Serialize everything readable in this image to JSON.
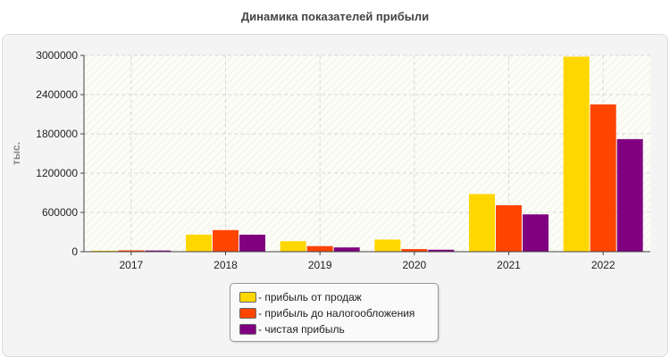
{
  "chart_data": {
    "type": "bar",
    "title": "Динамика показателей прибыли",
    "ylabel": "тыс.",
    "xlabel": "",
    "categories": [
      "2017",
      "2018",
      "2019",
      "2020",
      "2021",
      "2022"
    ],
    "series": [
      {
        "name": "- прибыль от продаж",
        "color": "#FFD700",
        "values": [
          15000,
          260000,
          160000,
          185000,
          880000,
          2980000
        ]
      },
      {
        "name": "- прибыль до налогообложения",
        "color": "#FF4500",
        "values": [
          20000,
          330000,
          85000,
          40000,
          710000,
          2250000
        ]
      },
      {
        "name": "- чистая прибыль",
        "color": "#800080",
        "values": [
          18000,
          260000,
          65000,
          30000,
          570000,
          1720000
        ]
      }
    ],
    "ylim": [
      0,
      3000000
    ],
    "yticks": [
      0,
      600000,
      1200000,
      1800000,
      2400000,
      3000000
    ],
    "ytick_labels": [
      "0",
      "600000",
      "1200000",
      "1800000",
      "2400000",
      "3000000"
    ],
    "grid": true,
    "legend_position": "bottom-center"
  }
}
